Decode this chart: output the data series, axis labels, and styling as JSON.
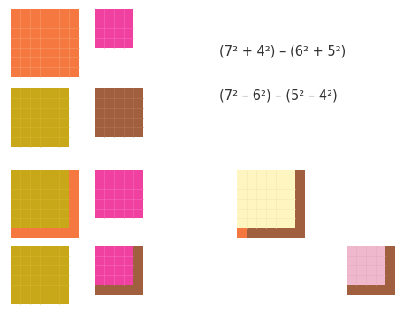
{
  "bg_color": "#ffffff",
  "colors": {
    "orange": "#F47840",
    "pink": "#F040A0",
    "yellow_green": "#C8A818",
    "brown": "#A06040",
    "light_yellow": "#FFF5C0",
    "light_pink": "#F0B8CC"
  },
  "grid_color_orange": "#F8A070",
  "grid_color_pink": "#F870C0",
  "grid_color_yg": "#D4B830",
  "grid_color_brown": "#B87858",
  "grid_color_lyellow": "#EEE8A8",
  "grid_color_lpink": "#E8A8BC",
  "formula1": "(7² + 4²) – (6² + 5²)",
  "formula2": "(7² – 6²) – (5² – 4²)",
  "font_size": 10.5,
  "unit": 11
}
